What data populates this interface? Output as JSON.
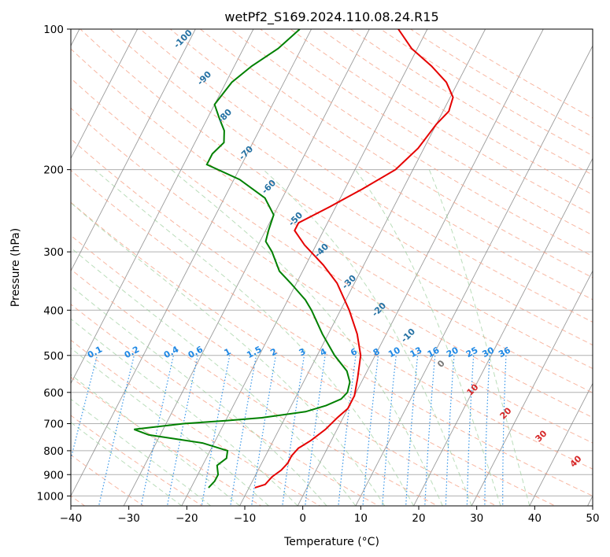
{
  "chart_data": {
    "type": "line",
    "title": "wetPf2_S169.2024.110.08.24.R15",
    "xlabel": "Temperature (°C)",
    "ylabel": "Pressure (hPa)",
    "xlim": [
      -40,
      50
    ],
    "ylim": [
      1050,
      100
    ],
    "y_scale": "log",
    "xticks": [
      -40,
      -30,
      -20,
      -10,
      0,
      10,
      20,
      30,
      40,
      50
    ],
    "yticks": [
      1000,
      900,
      800,
      700,
      600,
      500,
      400,
      300,
      200,
      100
    ],
    "grid": "horizontal at pressure ticks",
    "background_lines": [
      "isotherms (skewed)",
      "dry adiabats",
      "moist adiabats",
      "mixing ratio lines"
    ],
    "mixing_ratio_labels": [
      "0.1",
      "0.2",
      "0.4",
      "0.6",
      "1",
      "1.5",
      "2",
      "3",
      "4",
      "6",
      "8",
      "10",
      "13",
      "16",
      "20",
      "25",
      "30",
      "36"
    ],
    "mixing_ratio_values": [
      0.1,
      0.2,
      0.4,
      0.6,
      1,
      1.5,
      2,
      3,
      4,
      6,
      8,
      10,
      13,
      16,
      20,
      25,
      30,
      36
    ],
    "isotherm_labels": [
      "-100",
      "-90",
      "-80",
      "-70",
      "-60",
      "-50",
      "-40",
      "-30",
      "-20",
      "-10"
    ],
    "isotherm_label_values": [
      -100,
      -90,
      -80,
      -70,
      -60,
      -50,
      -40,
      -30,
      -20,
      -10
    ],
    "warm_isotherm_labels": [
      "0",
      "10",
      "20",
      "30",
      "40"
    ],
    "warm_isotherm_label_values": [
      0,
      10,
      20,
      30,
      40
    ],
    "series": [
      {
        "name": "",
        "color": "#e50000",
        "points": [
          {
            "p": 960,
            "t": -9
          },
          {
            "p": 945,
            "t": -7.5
          },
          {
            "p": 910,
            "t": -7
          },
          {
            "p": 880,
            "t": -6
          },
          {
            "p": 850,
            "t": -5.5
          },
          {
            "p": 820,
            "t": -5.5
          },
          {
            "p": 790,
            "t": -5
          },
          {
            "p": 760,
            "t": -3.5
          },
          {
            "p": 720,
            "t": -2
          },
          {
            "p": 680,
            "t": -1
          },
          {
            "p": 650,
            "t": 0
          },
          {
            "p": 610,
            "t": 0
          },
          {
            "p": 560,
            "t": -1
          },
          {
            "p": 500,
            "t": -2.5
          },
          {
            "p": 450,
            "t": -5
          },
          {
            "p": 400,
            "t": -8.5
          },
          {
            "p": 350,
            "t": -13
          },
          {
            "p": 320,
            "t": -17
          },
          {
            "p": 290,
            "t": -22
          },
          {
            "p": 270,
            "t": -25
          },
          {
            "p": 260,
            "t": -25
          },
          {
            "p": 240,
            "t": -21
          },
          {
            "p": 220,
            "t": -17
          },
          {
            "p": 200,
            "t": -13
          },
          {
            "p": 180,
            "t": -11
          },
          {
            "p": 160,
            "t": -10
          },
          {
            "p": 150,
            "t": -9
          },
          {
            "p": 140,
            "t": -9.5
          },
          {
            "p": 130,
            "t": -12
          },
          {
            "p": 120,
            "t": -16
          },
          {
            "p": 110,
            "t": -21
          },
          {
            "p": 100,
            "t": -25
          }
        ]
      },
      {
        "name": "",
        "color": "#008000",
        "points": [
          {
            "p": 960,
            "t": -17
          },
          {
            "p": 930,
            "t": -16.5
          },
          {
            "p": 900,
            "t": -16.5
          },
          {
            "p": 860,
            "t": -17.5
          },
          {
            "p": 830,
            "t": -16.5
          },
          {
            "p": 800,
            "t": -17
          },
          {
            "p": 770,
            "t": -22
          },
          {
            "p": 740,
            "t": -32
          },
          {
            "p": 720,
            "t": -35
          },
          {
            "p": 700,
            "t": -27
          },
          {
            "p": 690,
            "t": -20
          },
          {
            "p": 680,
            "t": -14
          },
          {
            "p": 660,
            "t": -7
          },
          {
            "p": 640,
            "t": -4
          },
          {
            "p": 620,
            "t": -2
          },
          {
            "p": 600,
            "t": -1.5
          },
          {
            "p": 570,
            "t": -2
          },
          {
            "p": 540,
            "t": -3.5
          },
          {
            "p": 500,
            "t": -7
          },
          {
            "p": 450,
            "t": -11
          },
          {
            "p": 400,
            "t": -15
          },
          {
            "p": 380,
            "t": -17
          },
          {
            "p": 350,
            "t": -21
          },
          {
            "p": 330,
            "t": -24
          },
          {
            "p": 300,
            "t": -27
          },
          {
            "p": 285,
            "t": -29
          },
          {
            "p": 270,
            "t": -29.5
          },
          {
            "p": 250,
            "t": -30
          },
          {
            "p": 230,
            "t": -33
          },
          {
            "p": 210,
            "t": -39
          },
          {
            "p": 195,
            "t": -46
          },
          {
            "p": 185,
            "t": -46
          },
          {
            "p": 175,
            "t": -45
          },
          {
            "p": 165,
            "t": -46
          },
          {
            "p": 155,
            "t": -48
          },
          {
            "p": 145,
            "t": -50
          },
          {
            "p": 130,
            "t": -49
          },
          {
            "p": 120,
            "t": -47
          },
          {
            "p": 110,
            "t": -44
          },
          {
            "p": 100,
            "t": -42
          }
        ]
      }
    ]
  }
}
